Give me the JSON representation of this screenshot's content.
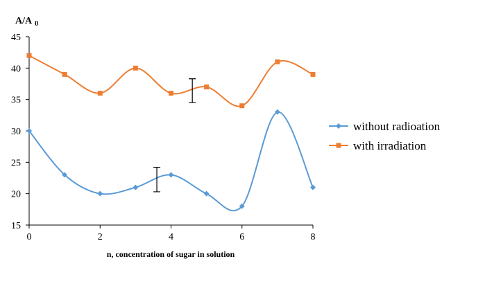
{
  "chart_data": {
    "type": "line",
    "title": "",
    "ylabel": "A/A",
    "ylabel_subscript": "0",
    "xlabel": "n, concentration  of sugar in solution",
    "x": [
      0,
      1,
      2,
      3,
      4,
      5,
      6,
      7,
      8
    ],
    "xticks": [
      0,
      2,
      4,
      6,
      8
    ],
    "yticks": [
      15,
      20,
      25,
      30,
      35,
      40,
      45
    ],
    "xlim": [
      0,
      8
    ],
    "ylim": [
      15,
      45
    ],
    "grid": false,
    "legend": "right",
    "series": [
      {
        "name": "without radioation",
        "color": "#5B9BD5",
        "marker": "diamond",
        "values": [
          30,
          23,
          20,
          21,
          23,
          20,
          18,
          33,
          21
        ]
      },
      {
        "name": "with irradiation",
        "color": "#ED7D31",
        "marker": "square",
        "values": [
          42,
          39,
          36,
          40,
          36,
          37,
          34,
          41,
          39
        ]
      }
    ],
    "error_bars": [
      {
        "x": 3.6,
        "low": 20.3,
        "high": 24.2
      },
      {
        "x": 4.6,
        "low": 34.5,
        "high": 38.3
      }
    ]
  }
}
